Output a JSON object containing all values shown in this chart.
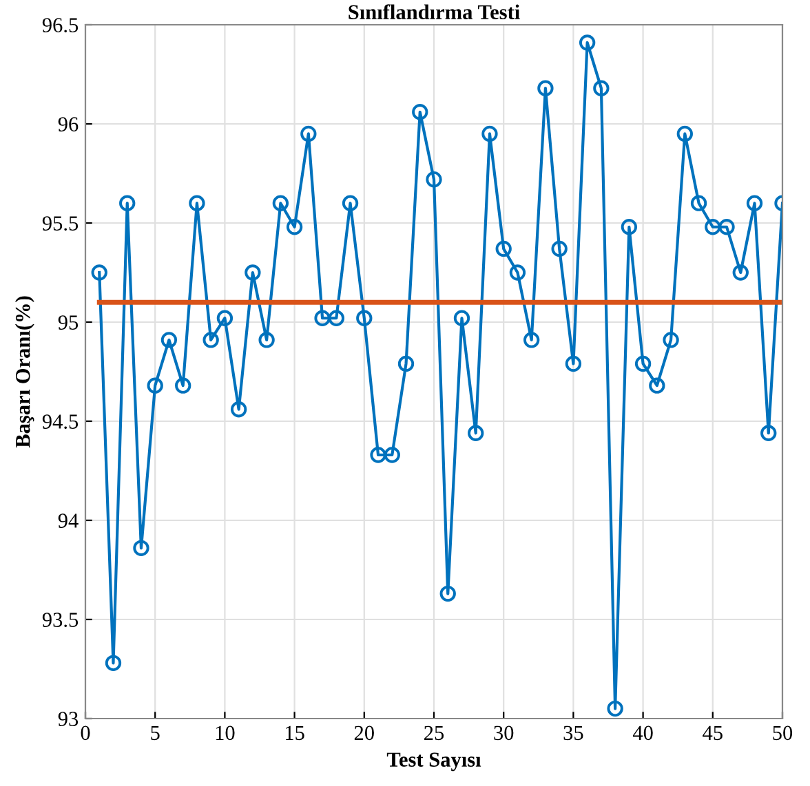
{
  "chart_data": {
    "type": "line",
    "title": "Sınıflandırma Testi",
    "xlabel": "Test Sayısı",
    "ylabel": "Başarı Oranı(%)",
    "xlim": [
      0,
      50
    ],
    "xticks": [
      0,
      5,
      10,
      15,
      20,
      25,
      30,
      35,
      40,
      45,
      50
    ],
    "ylim": [
      93,
      96.5
    ],
    "yticks": [
      93,
      93.5,
      94,
      94.5,
      95,
      95.5,
      96,
      96.5
    ],
    "grid": true,
    "series": [
      {
        "color": "#0072bd",
        "marker": "circle",
        "x": [
          1,
          2,
          3,
          4,
          5,
          6,
          7,
          8,
          9,
          10,
          11,
          12,
          13,
          14,
          15,
          16,
          17,
          18,
          19,
          20,
          21,
          22,
          23,
          24,
          25,
          26,
          27,
          28,
          29,
          30,
          31,
          32,
          33,
          34,
          35,
          36,
          37,
          38,
          39,
          40,
          41,
          42,
          43,
          44,
          45,
          46,
          47,
          48,
          49,
          50
        ],
        "values": [
          95.25,
          93.28,
          95.6,
          93.86,
          94.68,
          94.91,
          94.68,
          95.6,
          94.91,
          95.02,
          94.56,
          95.25,
          94.91,
          95.6,
          95.48,
          95.95,
          95.02,
          95.02,
          95.6,
          95.02,
          94.33,
          94.33,
          94.79,
          96.06,
          95.72,
          93.63,
          95.02,
          94.44,
          95.95,
          95.37,
          95.25,
          94.91,
          96.18,
          95.37,
          94.79,
          96.41,
          96.18,
          93.05,
          95.48,
          94.79,
          94.68,
          94.91,
          95.95,
          95.6,
          95.48,
          95.48,
          95.25,
          95.6,
          94.44,
          95.6
        ]
      },
      {
        "color": "#d95319",
        "marker": "none",
        "x": [
          1,
          50
        ],
        "values": [
          95.1,
          95.1
        ]
      }
    ]
  }
}
